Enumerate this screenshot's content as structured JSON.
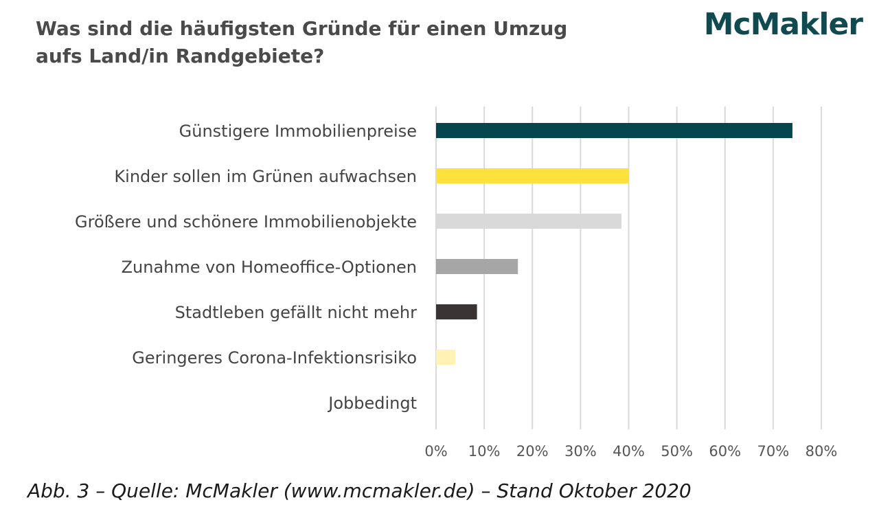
{
  "header": {
    "title_line1": "Was sind die häufigsten Gründe für einen Umzug",
    "title_line2": "aufs Land/in Randgebiete?",
    "logo": "McMakler"
  },
  "caption": "Abb. 3 – Quelle: McMakler (www.mcmakler.de) – Stand Oktober 2020",
  "chart_data": {
    "type": "bar",
    "orientation": "horizontal",
    "title": "Was sind die häufigsten Gründe für einen Umzug aufs Land/in Randgebiete?",
    "categories": [
      "Günstigere Immobilienpreise",
      "Kinder sollen im Grünen aufwachsen",
      "Größere und schönere Immobilienobjekte",
      "Zunahme von Homeoffice-Optionen",
      "Stadtleben gefällt nicht mehr",
      "Geringeres Corona-Infektionsrisiko",
      "Jobbedingt"
    ],
    "values": [
      74,
      40,
      38.5,
      17,
      8.5,
      4,
      0
    ],
    "colors": [
      "#05454d",
      "#fde23e",
      "#d9d9d9",
      "#a6a6a6",
      "#3b3435",
      "#fff2b3",
      "#ffffff"
    ],
    "xlim": [
      0,
      80
    ],
    "ticks": [
      0,
      10,
      20,
      30,
      40,
      50,
      60,
      70,
      80
    ],
    "tick_labels": [
      "0%",
      "10%",
      "20%",
      "30%",
      "40%",
      "50%",
      "60%",
      "70%",
      "80%"
    ],
    "grid": true,
    "gridline_color": "#d9d9d9",
    "legend": false
  }
}
